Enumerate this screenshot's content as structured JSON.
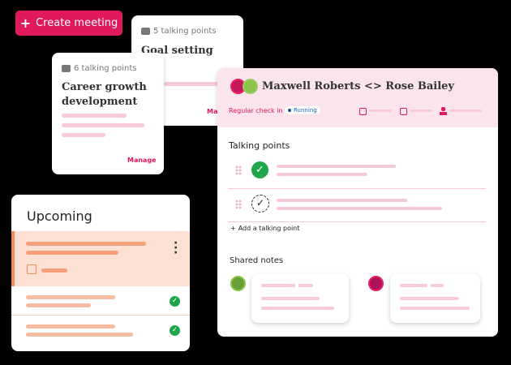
{
  "create_button": {
    "label": "Create meeting",
    "icon": "plus-icon"
  },
  "goal_card": {
    "count": "5 talking points",
    "title": "Goal setting",
    "manage": "Manage"
  },
  "career_card": {
    "count": "6 talking points",
    "title": "Career growth development",
    "manage": "Manage"
  },
  "upcoming": {
    "title": "Upcoming"
  },
  "meeting": {
    "title": "Maxwell Roberts <> Rose Bailey",
    "type": "Regular check in",
    "status": "Running",
    "talking_points_heading": "Talking points",
    "add_label": "Add a talking point",
    "shared_notes_heading": "Shared notes"
  },
  "colors": {
    "accent": "#e0185e",
    "header_bg": "#fce4ec",
    "success": "#1fa64a",
    "upcoming_highlight": "#fde0d4"
  }
}
